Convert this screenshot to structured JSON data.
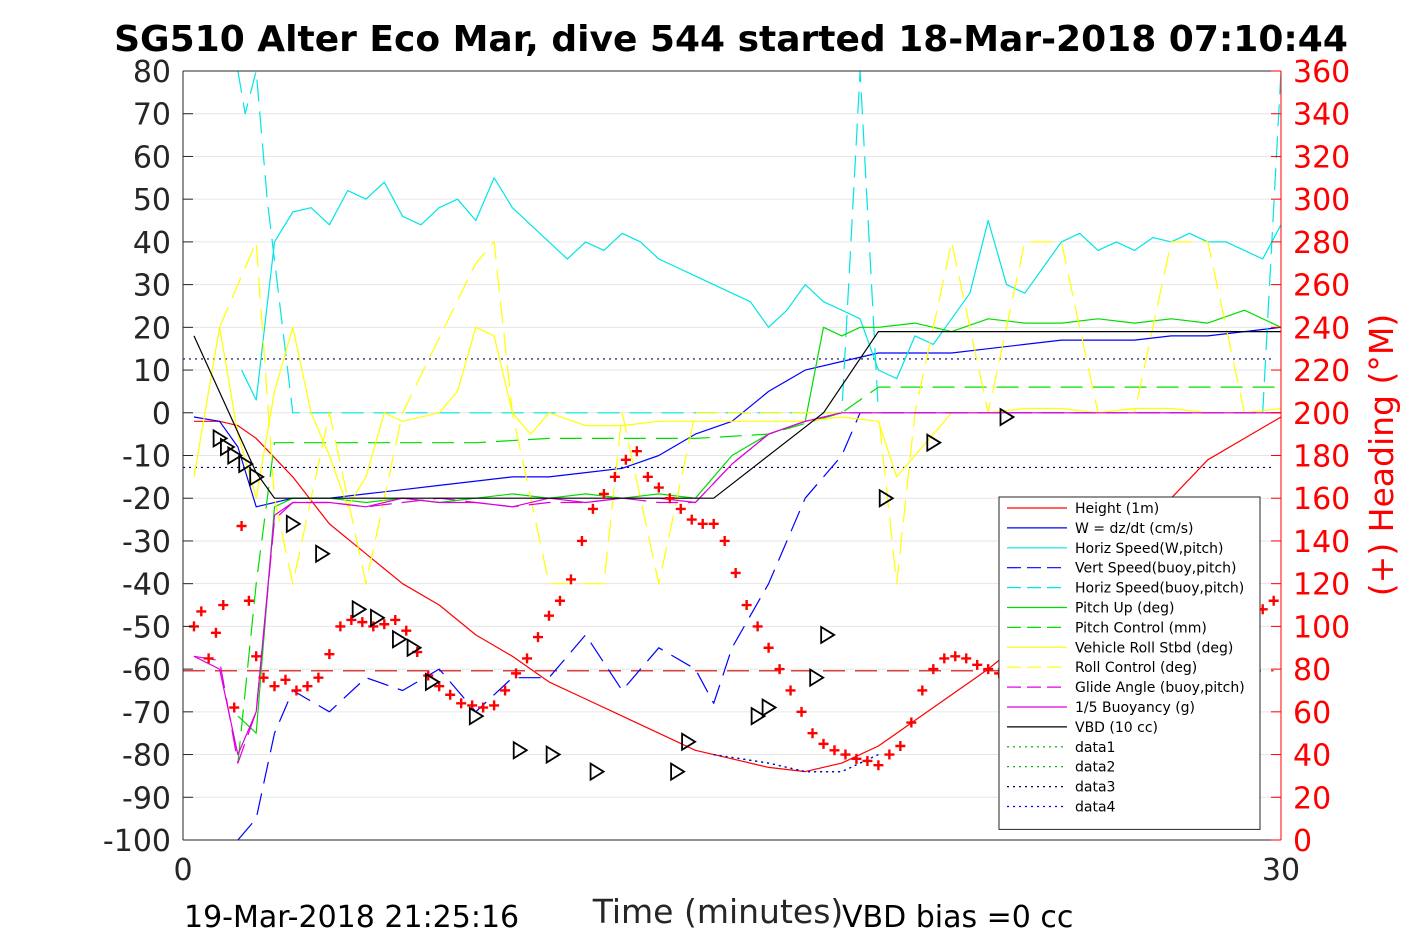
{
  "figure": {
    "title": "SG510 Alter Eco Mar, dive 544 started 18-Mar-2018 07:10:44",
    "footer_date": "19-Mar-2018 21:25:16",
    "footer_vbd": "VBD bias =0 cc"
  },
  "chart_data": {
    "type": "line",
    "title": "SG510 Alter Eco Mar, dive 544 started 18-Mar-2018 07:10:44",
    "xlabel": "Time (minutes)",
    "ylabel_right": "(+) Heading (°M)",
    "xlim": [
      0,
      30
    ],
    "ylim": [
      -100,
      80
    ],
    "ylim_right": [
      0,
      360
    ],
    "xticks": [
      "0",
      "30"
    ],
    "yticks": [
      "80",
      "70",
      "60",
      "50",
      "40",
      "30",
      "20",
      "10",
      "0",
      "-10",
      "-20",
      "-30",
      "-40",
      "-50",
      "-60",
      "-70",
      "-80",
      "-90",
      "-100"
    ],
    "yticks_right": [
      "360",
      "340",
      "320",
      "300",
      "280",
      "260",
      "240",
      "220",
      "200",
      "180",
      "160",
      "140",
      "120",
      "100",
      "80",
      "60",
      "40",
      "20",
      "0"
    ],
    "grid": "horizontal",
    "legend_position": "bottom-right",
    "series": [
      {
        "name": "Height (1m)",
        "color": "#ff0000",
        "style": "solid",
        "x": [
          0.3,
          1.0,
          1.5,
          2.0,
          3.0,
          4.0,
          5.0,
          6.0,
          7.0,
          8.0,
          9.0,
          10.0,
          11.0,
          12.0,
          13.0,
          14.0,
          15.0,
          16.0,
          17.0,
          18.0,
          19.0,
          20.0,
          21.0,
          22.0,
          23.0,
          24.0,
          25.0,
          26.0,
          27.0,
          28.0,
          29.0,
          30.0
        ],
        "y": [
          -2,
          -2,
          -3,
          -6,
          -15,
          -26,
          -33,
          -40,
          -45,
          -52,
          -57,
          -63,
          -67,
          -71,
          -75,
          -79,
          -81,
          -83,
          -84,
          -82,
          -78,
          -72,
          -66,
          -60,
          -53,
          -45,
          -37,
          -28,
          -20,
          -11,
          -6,
          -1
        ]
      },
      {
        "name": "W = dz/dt (cm/s)",
        "color": "#0000ff",
        "style": "solid",
        "x": [
          0.3,
          1.0,
          1.5,
          2.0,
          3.0,
          4.0,
          5.0,
          6.0,
          7.0,
          8.0,
          9.0,
          10.0,
          11.0,
          12.0,
          13.0,
          14.0,
          15.0,
          16.0,
          17.0,
          18.0,
          19.0,
          20.0,
          21.0,
          22.0,
          23.0,
          24.0,
          25.0,
          26.0,
          27.0,
          28.0,
          29.0,
          30.0
        ],
        "y": [
          -1,
          -2,
          -8,
          -22,
          -20,
          -20,
          -19,
          -18,
          -17,
          -16,
          -15,
          -15,
          -14,
          -13,
          -10,
          -5,
          -2,
          5,
          10,
          12,
          14,
          14,
          14,
          15,
          16,
          17,
          17,
          17,
          18,
          18,
          19,
          20
        ]
      },
      {
        "name": "Horiz Speed(W,pitch)",
        "color": "#00e5e5",
        "style": "solid",
        "x": [
          1.6,
          2.0,
          2.5,
          3.0,
          3.5,
          4.0,
          4.5,
          5.0,
          5.5,
          6.0,
          6.5,
          7.0,
          7.5,
          8.0,
          8.5,
          9.0,
          9.5,
          10.0,
          10.5,
          11.0,
          11.5,
          12.0,
          12.5,
          13.0,
          13.5,
          14.0,
          14.5,
          15.0,
          15.5,
          16.0,
          16.5,
          17.0,
          17.5,
          18.0,
          18.5,
          19.0,
          19.5,
          20.0,
          20.5,
          21.0,
          21.5,
          22.0,
          22.5,
          23.0,
          23.5,
          24.0,
          24.5,
          25.0,
          25.5,
          26.0,
          26.5,
          27.0,
          27.5,
          28.0,
          28.5,
          29.0,
          29.5,
          30.0
        ],
        "y": [
          10,
          3,
          40,
          47,
          48,
          44,
          52,
          50,
          54,
          46,
          44,
          48,
          50,
          45,
          55,
          48,
          44,
          40,
          36,
          40,
          38,
          42,
          40,
          36,
          34,
          32,
          30,
          28,
          26,
          20,
          24,
          30,
          26,
          24,
          22,
          10,
          8,
          18,
          16,
          22,
          28,
          45,
          30,
          28,
          34,
          40,
          42,
          38,
          40,
          38,
          41,
          40,
          42,
          40,
          40,
          38,
          36,
          44
        ]
      },
      {
        "name": "Vert Speed(buoy,pitch)",
        "color": "#0000ff",
        "style": "dashed",
        "x": [
          1.5,
          2.0,
          2.5,
          3.0,
          4.0,
          5.0,
          6.0,
          7.0,
          8.0,
          9.0,
          10.0,
          11.0,
          12.0,
          13.0,
          14.0,
          14.5,
          15.0,
          16.0,
          17.0,
          18.0,
          18.5,
          19.0,
          20.0,
          25.0,
          30.0
        ],
        "y": [
          -100,
          -95,
          -75,
          -65,
          -70,
          -62,
          -65,
          -60,
          -70,
          -62,
          -62,
          -52,
          -65,
          -55,
          -60,
          -68,
          -55,
          -40,
          -20,
          -10,
          0,
          0,
          0,
          0,
          0
        ]
      },
      {
        "name": "Horiz Speed(buoy,pitch)",
        "color": "#00e5e5",
        "style": "dashed",
        "x": [
          1.5,
          1.7,
          2.0,
          2.3,
          3.0,
          10.0,
          17.5,
          18.0,
          18.5,
          19.0,
          25.0,
          29.5,
          30.0
        ],
        "y": [
          80,
          70,
          80,
          50,
          0,
          0,
          0,
          0,
          80,
          0,
          0,
          0,
          80
        ]
      },
      {
        "name": "Pitch Up (deg)",
        "color": "#00dd00",
        "style": "solid",
        "x": [
          1.5,
          2.0,
          2.5,
          3.0,
          4.0,
          5.0,
          6.0,
          7.0,
          8.0,
          9.0,
          10.0,
          11.0,
          12.0,
          13.0,
          14.0,
          15.0,
          16.0,
          17.0,
          17.5,
          18.0,
          18.5,
          19.0,
          20.0,
          21.0,
          22.0,
          23.0,
          24.0,
          25.0,
          26.0,
          27.0,
          28.0,
          29.0,
          30.0
        ],
        "y": [
          -71,
          -75,
          -22,
          -20,
          -20,
          -21,
          -20,
          -21,
          -20,
          -19,
          -20,
          -19,
          -20,
          -19,
          -20,
          -10,
          -5,
          -2,
          20,
          18,
          20,
          20,
          21,
          19,
          22,
          21,
          21,
          22,
          21,
          22,
          21,
          24,
          20
        ]
      },
      {
        "name": "Pitch Control (mm)",
        "color": "#00dd00",
        "style": "dashed",
        "x": [
          1.5,
          2.0,
          2.5,
          3.0,
          4.0,
          8.0,
          10.0,
          12.0,
          14.0,
          16.0,
          18.0,
          19.0,
          20.0,
          30.0
        ],
        "y": [
          -82,
          -40,
          -7,
          -7,
          -7,
          -7,
          -6,
          -6,
          -6,
          -5,
          0,
          6,
          6,
          6
        ]
      },
      {
        "name": "Vehicle Roll Stbd (deg)",
        "color": "#ffff00",
        "style": "solid",
        "x": [
          0.3,
          1.0,
          1.5,
          2.0,
          2.5,
          3.0,
          3.5,
          4.0,
          4.5,
          5.0,
          5.5,
          6.0,
          7.0,
          7.5,
          8.0,
          8.5,
          9.0,
          9.5,
          10.0,
          11.0,
          12.0,
          13.0,
          14.0,
          15.0,
          16.0,
          17.0,
          18.0,
          19.0,
          19.5,
          20.0,
          21.0,
          22.0,
          23.0,
          24.0,
          25.0,
          26.0,
          27.0,
          28.0,
          29.0,
          30.0
        ],
        "y": [
          -15,
          20,
          -5,
          -20,
          5,
          20,
          0,
          -10,
          -22,
          -15,
          0,
          -2,
          0,
          5,
          20,
          18,
          0,
          -5,
          0,
          -3,
          -3,
          -2,
          -2,
          -2,
          -2,
          -2,
          -1,
          -2,
          -15,
          -10,
          0,
          0,
          1,
          1,
          0,
          1,
          1,
          0,
          0,
          1
        ]
      },
      {
        "name": "Roll Control (deg)",
        "color": "#ffff00",
        "style": "dashed",
        "x": [
          1.0,
          2.0,
          2.5,
          3.0,
          4.0,
          5.0,
          6.0,
          8.0,
          8.5,
          9.0,
          10.0,
          11.0,
          11.5,
          12.0,
          13.0,
          14.0,
          17.0,
          19.0,
          19.5,
          20.0,
          21.0,
          22.0,
          23.0,
          24.0,
          25.0,
          26.0,
          27.0,
          28.0,
          29.0,
          30.0
        ],
        "y": [
          20,
          40,
          -20,
          -40,
          0,
          -40,
          0,
          35,
          40,
          0,
          -40,
          -40,
          -40,
          0,
          -40,
          0,
          0,
          0,
          -40,
          0,
          40,
          0,
          40,
          40,
          0,
          0,
          40,
          40,
          0,
          0
        ]
      },
      {
        "name": "Glide Angle (buoy,pitch)",
        "color": "#dd00dd",
        "style": "dashed",
        "x": [
          0.3,
          1.0,
          1.5,
          2.0,
          2.5,
          3.0,
          4.0,
          5.0,
          6.0,
          7.0,
          8.0,
          9.0,
          10.0,
          11.0,
          12.0,
          13.0,
          14.0,
          15.0,
          16.0,
          17.0,
          18.0,
          19.0,
          20.0,
          25.0,
          30.0
        ],
        "y": [
          -57,
          -58,
          -82,
          -70,
          -25,
          -21,
          -21,
          -22,
          -21,
          -20,
          -21,
          -22,
          -21,
          -21,
          -20,
          -21,
          -21,
          -12,
          -5,
          -2,
          0,
          0,
          0,
          0,
          0
        ]
      },
      {
        "name": "1/5 Buoyancy (g)",
        "color": "#dd00dd",
        "style": "solid",
        "x": [
          0.3,
          1.0,
          1.5,
          2.0,
          2.5,
          3.0,
          4.0,
          5.0,
          6.0,
          7.0,
          8.0,
          9.0,
          10.0,
          11.0,
          12.0,
          13.0,
          14.0,
          15.0,
          16.0,
          17.0,
          18.0,
          19.0,
          20.0,
          25.0,
          30.0
        ],
        "y": [
          -57,
          -60,
          -80,
          -70,
          -24,
          -21,
          -21,
          -22,
          -20,
          -21,
          -21,
          -22,
          -20,
          -21,
          -20,
          -20,
          -21,
          -12,
          -5,
          -2,
          0,
          0,
          0,
          0,
          0
        ]
      },
      {
        "name": "VBD (10 cc)",
        "color": "#000000",
        "style": "solid",
        "x": [
          0.3,
          2.0,
          2.5,
          10.0,
          14.5,
          17.5,
          19.0,
          23.0,
          30.0
        ],
        "y": [
          18,
          -14,
          -20,
          -20,
          -20,
          0,
          19,
          19,
          19
        ]
      },
      {
        "name": "data1",
        "color": "#00aa00",
        "style": "dotted",
        "x": [
          14.5,
          16.0,
          17.0,
          18.0,
          19.0
        ],
        "y": [
          -80,
          -82,
          -84,
          -84,
          -80
        ]
      },
      {
        "name": "data2",
        "color": "#00aa00",
        "style": "dotted",
        "x": [
          14.5,
          16.0,
          17.0,
          18.0,
          19.0
        ],
        "y": [
          -80,
          -82,
          -84,
          -84,
          -80
        ]
      },
      {
        "name": "data3",
        "color": "#000066",
        "style": "dotted",
        "x": [
          14.5,
          16.0,
          17.0,
          18.0,
          19.0
        ],
        "y": [
          -80,
          -82,
          -84,
          -84,
          -80
        ]
      },
      {
        "name": "data4",
        "color": "#0000ff",
        "style": "dotted",
        "x": [
          14.5,
          16.0,
          17.0,
          18.0,
          19.0
        ],
        "y": [
          -80,
          -82,
          -84,
          -84,
          -80
        ]
      }
    ],
    "reference_lines": [
      {
        "y": 12.6,
        "color": "#000066",
        "style": "dotted"
      },
      {
        "y": -12.8,
        "color": "#000066",
        "style": "dotted"
      },
      {
        "y": -60.4,
        "color": "#cc0000",
        "style": "dashed"
      }
    ],
    "heading_markers": {
      "color": "#ff0000",
      "marker": "+",
      "axis": "right",
      "x": [
        0.3,
        0.5,
        0.7,
        0.9,
        1.1,
        1.4,
        1.6,
        1.8,
        2.0,
        2.2,
        2.5,
        2.8,
        3.1,
        3.4,
        3.7,
        4.0,
        4.3,
        4.6,
        4.9,
        5.2,
        5.5,
        5.8,
        6.1,
        6.4,
        6.7,
        7.0,
        7.3,
        7.6,
        7.9,
        8.2,
        8.5,
        8.8,
        9.1,
        9.4,
        9.7,
        10.0,
        10.3,
        10.6,
        10.9,
        11.2,
        11.5,
        11.8,
        12.1,
        12.4,
        12.7,
        13.0,
        13.3,
        13.6,
        13.9,
        14.2,
        14.5,
        14.8,
        15.1,
        15.4,
        15.7,
        16.0,
        16.3,
        16.6,
        16.9,
        17.2,
        17.5,
        17.8,
        18.1,
        18.4,
        18.7,
        19.0,
        19.3,
        19.6,
        19.9,
        20.2,
        20.5,
        20.8,
        21.1,
        21.4,
        21.7,
        22.0,
        22.3,
        22.6,
        22.9,
        23.2,
        23.5,
        23.8,
        24.1,
        24.4,
        24.7,
        25.0,
        25.3,
        25.6,
        25.9,
        26.2,
        26.5,
        26.8,
        27.1,
        27.4,
        27.7,
        28.0,
        28.3,
        28.6,
        28.9,
        29.2,
        29.5,
        29.8
      ],
      "y": [
        100,
        107,
        85,
        97,
        110,
        62,
        147,
        112,
        86,
        76,
        72,
        75,
        70,
        72,
        76,
        87,
        100,
        103,
        102,
        100,
        101,
        103,
        98,
        88,
        77,
        72,
        68,
        64,
        63,
        62,
        63,
        70,
        78,
        85,
        95,
        105,
        112,
        122,
        140,
        155,
        162,
        170,
        178,
        182,
        170,
        165,
        160,
        155,
        150,
        148,
        148,
        140,
        125,
        110,
        100,
        90,
        80,
        70,
        60,
        50,
        45,
        42,
        40,
        38,
        37,
        35,
        40,
        44,
        55,
        70,
        80,
        85,
        86,
        85,
        82,
        80,
        78,
        76,
        74,
        72,
        70,
        69,
        68,
        65,
        62,
        56,
        52,
        49,
        47,
        46,
        48,
        50,
        55,
        62,
        70,
        80,
        88,
        95,
        100,
        105,
        108,
        112
      ]
    },
    "triangle_markers": {
      "color": "#000000",
      "marker": "triangle",
      "x": [
        1.0,
        1.2,
        1.4,
        1.7,
        2.0,
        3.0,
        3.8,
        4.8,
        5.3,
        5.9,
        6.3,
        6.8,
        8.0,
        9.2,
        10.1,
        11.3,
        13.5,
        13.8,
        15.7,
        16.0,
        17.3,
        17.6,
        19.2,
        20.5,
        22.5,
        23.5,
        26.3,
        28.9,
        29.2
      ],
      "y": [
        -6,
        -8,
        -10,
        -12,
        -15,
        -26,
        -33,
        -46,
        -48,
        -53,
        -55,
        -63,
        -71,
        -79,
        -80,
        -84,
        -84,
        -77,
        -71,
        -69,
        -62,
        -52,
        -20,
        -7,
        -1,
        -45,
        -48,
        -73,
        -85
      ]
    }
  }
}
